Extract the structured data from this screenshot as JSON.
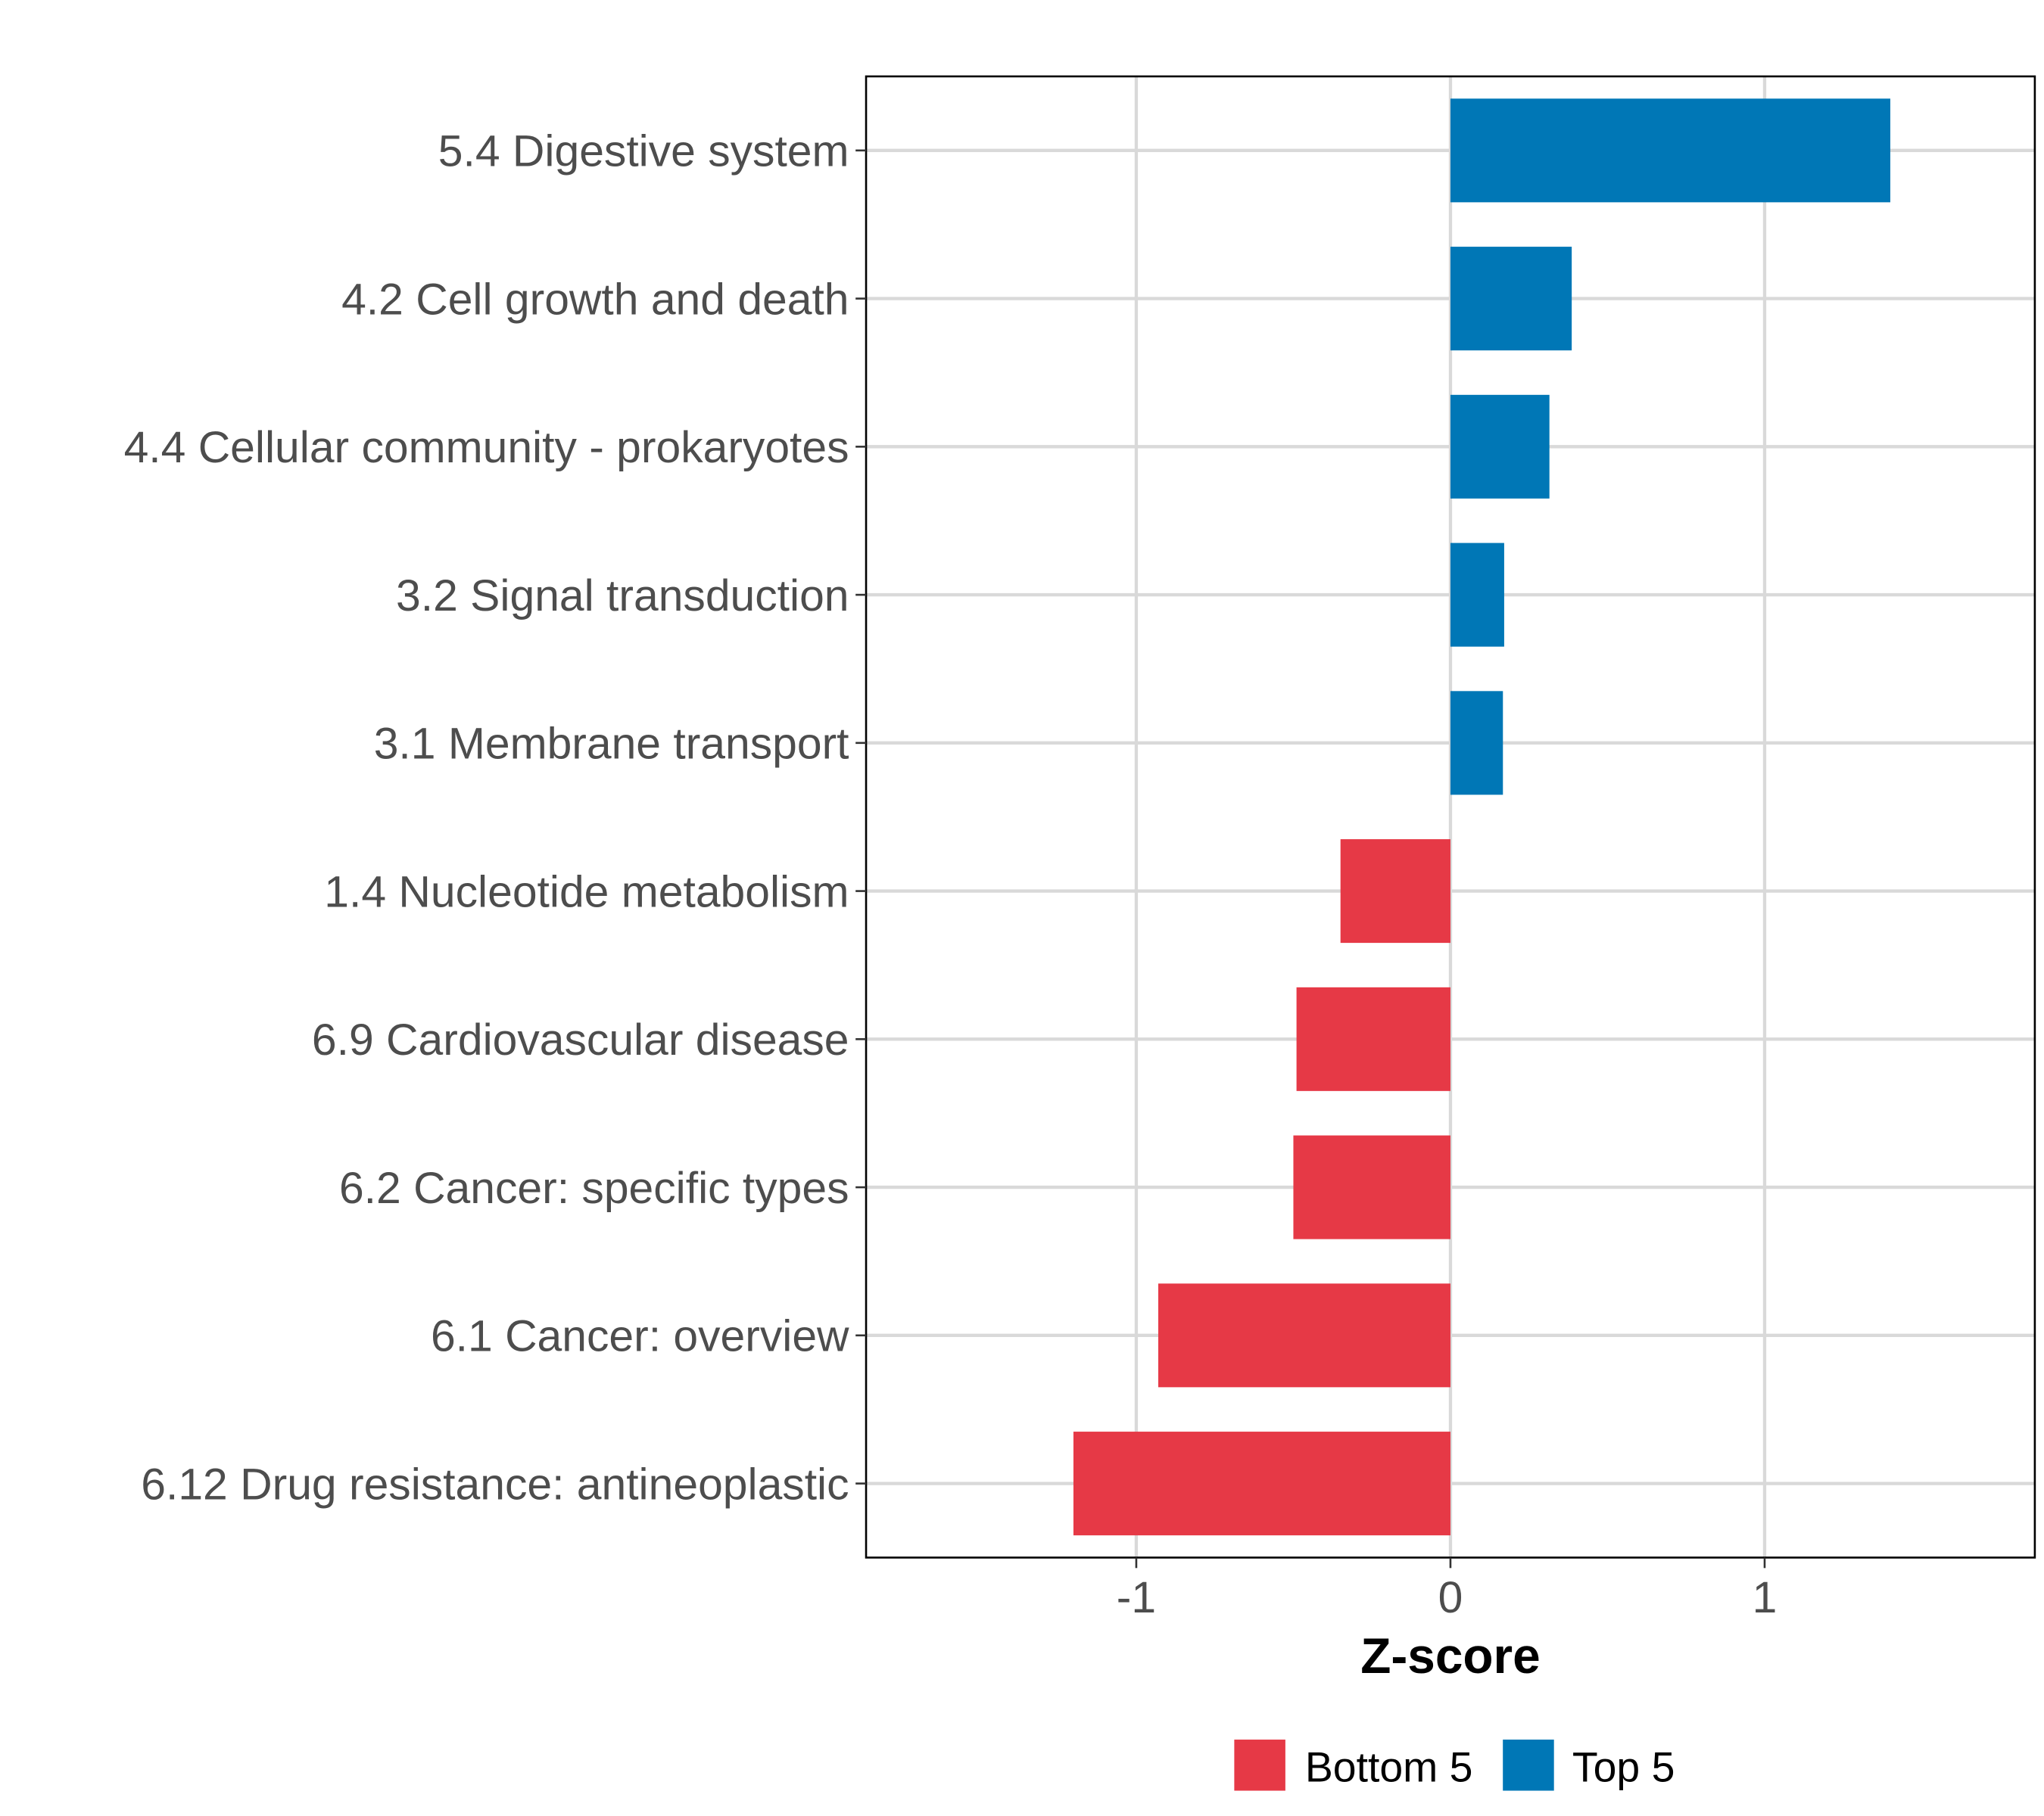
{
  "chart_data": {
    "type": "bar",
    "orientation": "horizontal",
    "title": "",
    "xlabel": "Z-score",
    "ylabel": "",
    "xlim": [
      -1.86,
      1.86
    ],
    "xticks": [
      -1,
      0,
      1
    ],
    "xtick_labels": [
      "-1",
      "0",
      "1"
    ],
    "grid": true,
    "categories": [
      "5.4 Digestive system",
      "4.2 Cell growth and death",
      "4.4 Cellular community - prokaryotes",
      "3.2 Signal transduction",
      "3.1 Membrane transport",
      "1.4 Nucleotide metabolism",
      "6.9 Cardiovascular disease",
      "6.2 Cancer: specific types",
      "6.1 Cancer: overview",
      "6.12 Drug resistance: antineoplastic"
    ],
    "values": [
      1.4,
      0.386,
      0.315,
      0.171,
      0.167,
      -0.35,
      -0.49,
      -0.5,
      -0.93,
      -1.2
    ],
    "groups": [
      "Top 5",
      "Top 5",
      "Top 5",
      "Top 5",
      "Top 5",
      "Bottom 5",
      "Bottom 5",
      "Bottom 5",
      "Bottom 5",
      "Bottom 5"
    ],
    "legend": {
      "placement": "bottom",
      "entries": [
        {
          "label": "Bottom 5",
          "color": "#E63946"
        },
        {
          "label": "Top 5",
          "color": "#0077B6"
        }
      ]
    }
  }
}
